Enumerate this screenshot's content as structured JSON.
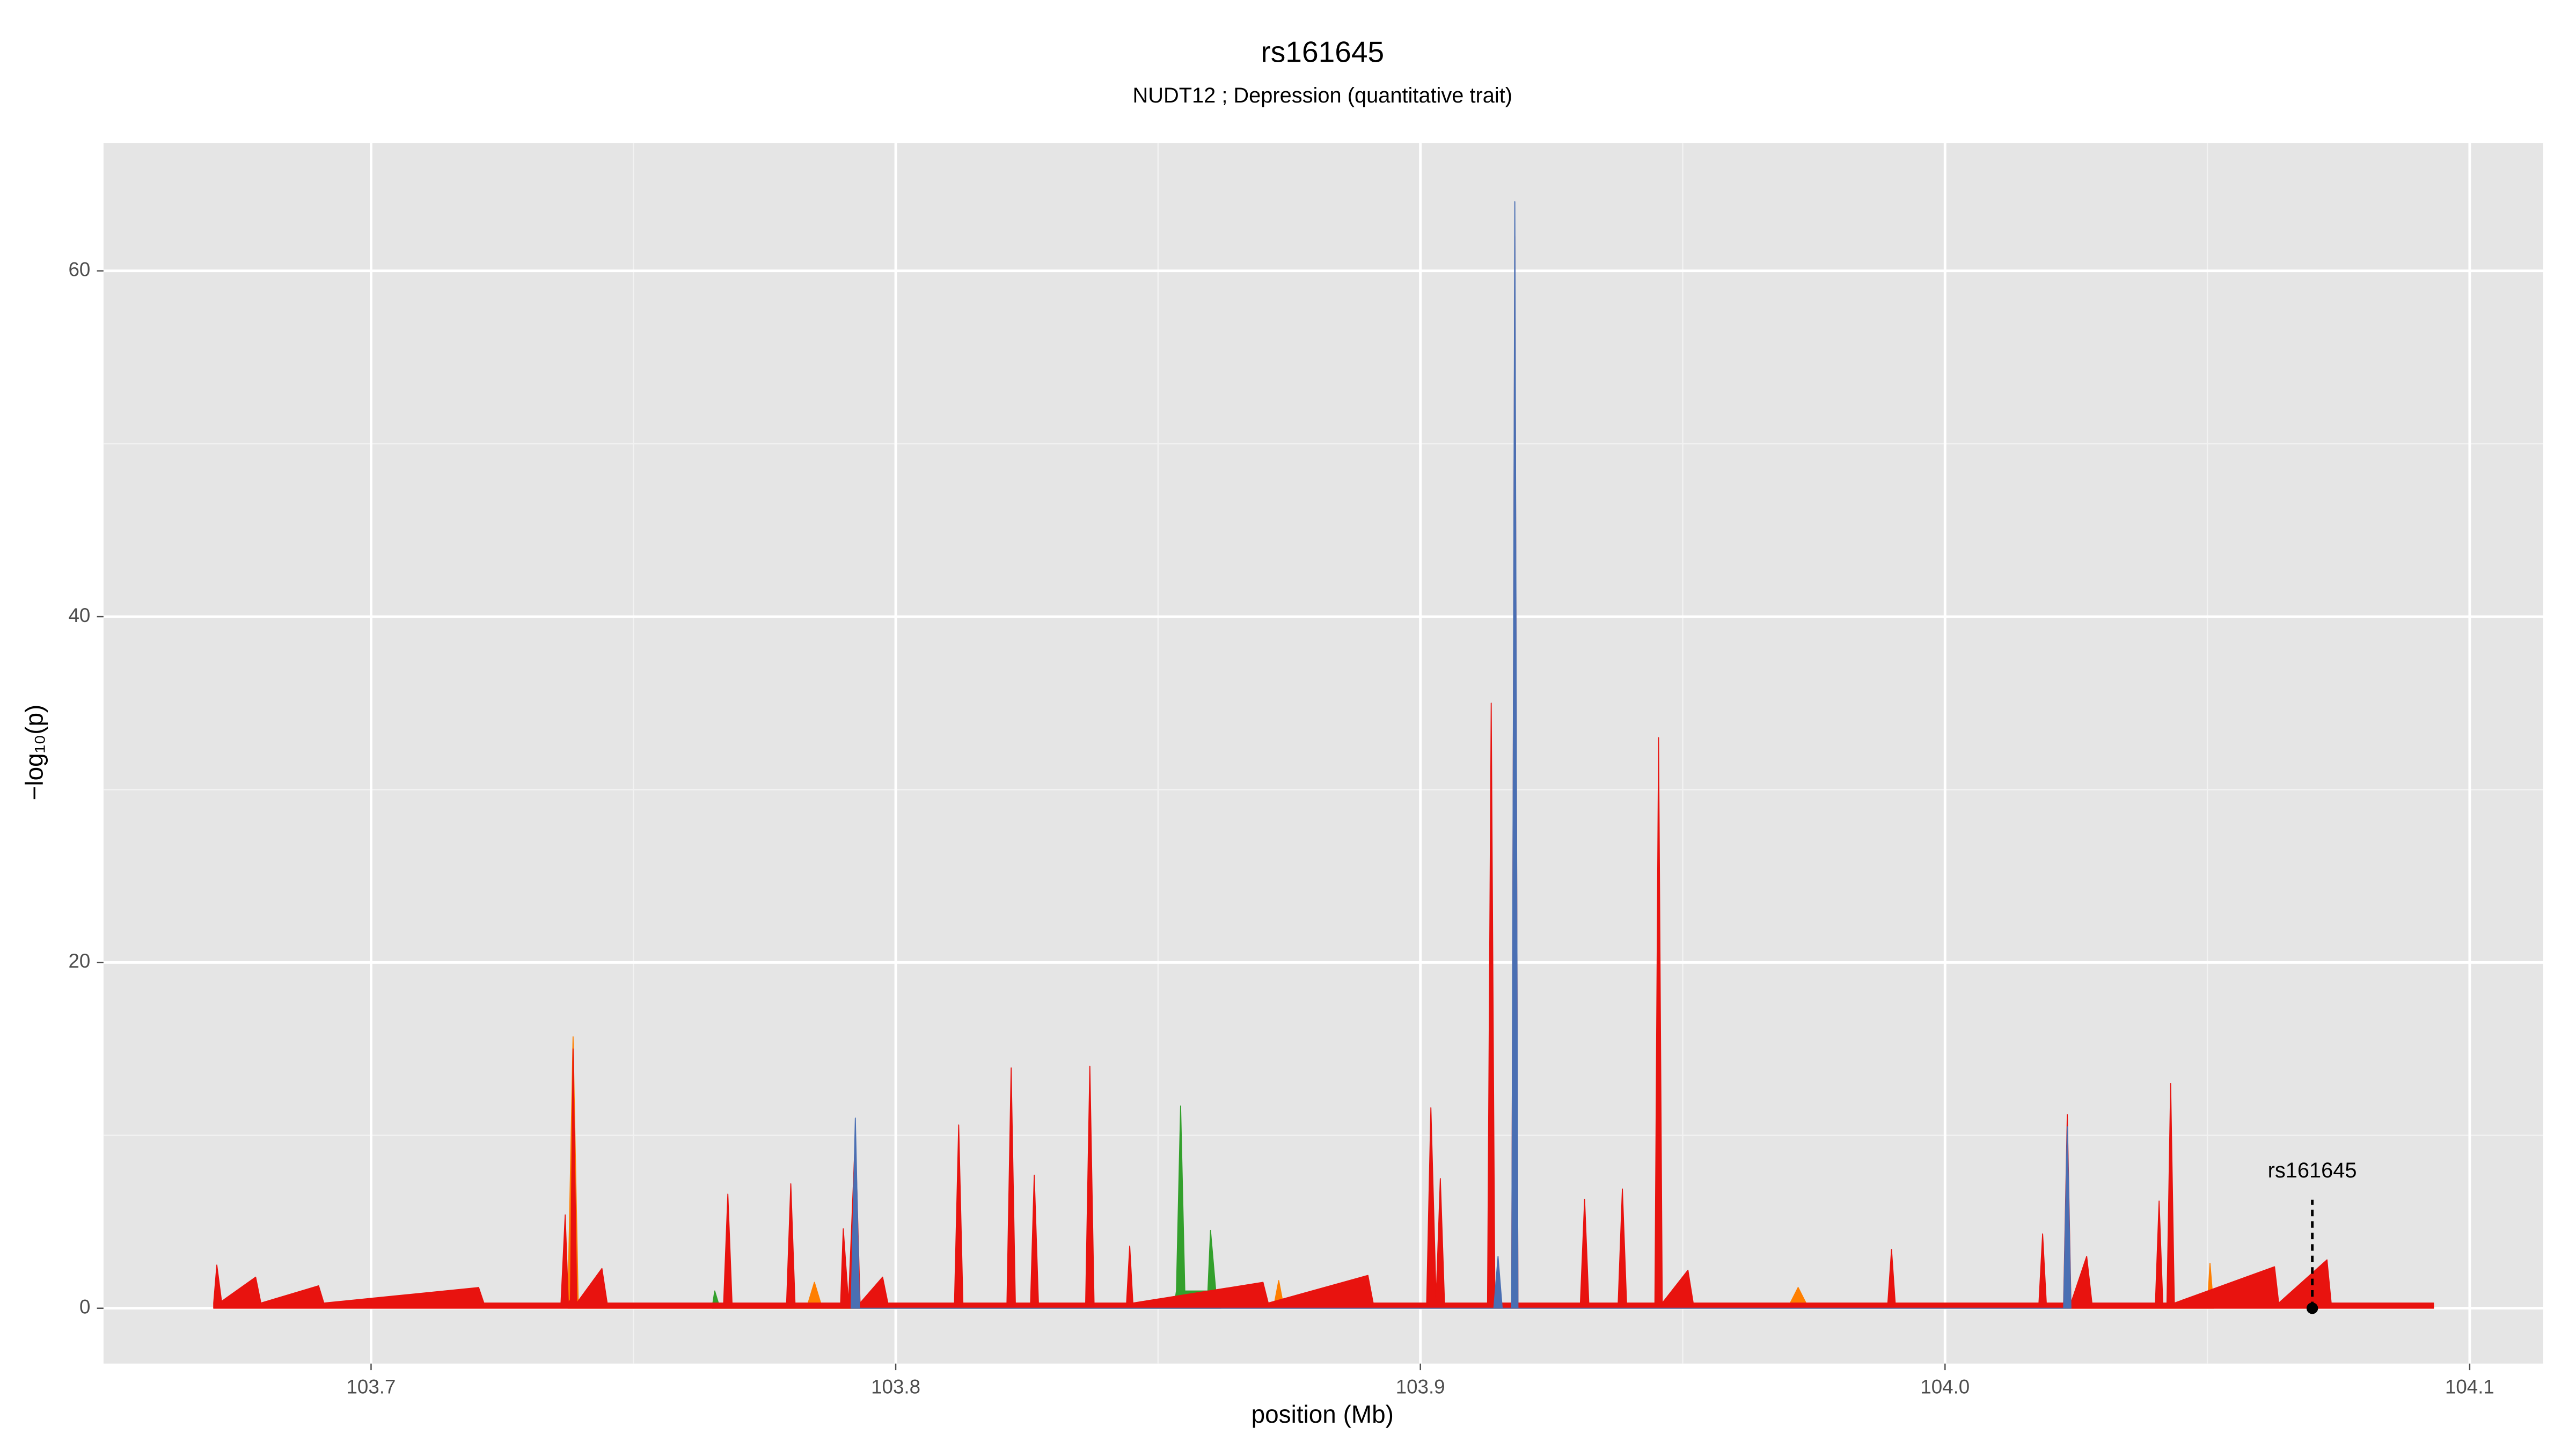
{
  "chart_data": {
    "type": "area",
    "title": "rs161645",
    "subtitle": "NUDT12 ; Depression (quantitative trait)",
    "xlabel": "position (Mb)",
    "ylabel": "−log₁₀(p)",
    "xlim": [
      103.649,
      104.114
    ],
    "ylim": [
      -3.2,
      67.4
    ],
    "xticks": [
      103.7,
      103.8,
      103.9,
      {
        "value": 104,
        "label": "104.0"
      },
      104.1
    ],
    "minor_xticks": [
      103.75,
      103.85,
      103.95,
      104.05
    ],
    "yticks": [
      0,
      20,
      40,
      60
    ],
    "minor_yticks": [
      10,
      30,
      50
    ],
    "grid": true,
    "panel_color": "#e5e5e5",
    "series": [
      {
        "color": "#ff7f00",
        "x": [
          103.7375,
          103.7385,
          103.7395,
          103.783,
          103.7845,
          103.786,
          103.872,
          103.873,
          103.874,
          103.97,
          103.972,
          103.974,
          104.05,
          104.0505,
          104.0512
        ],
        "values": [
          0,
          15.7,
          0,
          0,
          1.5,
          0,
          0,
          1.6,
          0,
          0,
          1.2,
          0,
          0,
          2.6,
          0
        ]
      },
      {
        "color": "#33a02c",
        "x": [
          103.765,
          103.7655,
          103.7665,
          103.853,
          103.8535,
          103.8543,
          103.8551,
          103.8595,
          103.86,
          103.861,
          103.862
        ],
        "values": [
          0,
          1,
          0,
          0,
          1,
          11.7,
          1,
          1,
          4.5,
          1,
          0
        ]
      },
      {
        "color": "#e8130f",
        "x": [
          103.67,
          103.6706,
          103.6715,
          103.678,
          103.679,
          103.69,
          103.691,
          103.7205,
          103.7215,
          103.7362,
          103.737,
          103.7376,
          103.738,
          103.7385,
          103.7392,
          103.744,
          103.745,
          103.7672,
          103.768,
          103.7688,
          103.7792,
          103.78,
          103.7808,
          103.7895,
          103.79,
          103.791,
          103.7923,
          103.7932,
          103.7975,
          103.7985,
          103.8112,
          103.812,
          103.8128,
          103.8212,
          103.822,
          103.8228,
          103.8257,
          103.8264,
          103.8272,
          103.8362,
          103.837,
          103.8378,
          103.844,
          103.8446,
          103.8452,
          103.87,
          103.871,
          103.89,
          103.891,
          103.9012,
          103.902,
          103.903,
          103.9038,
          103.9046,
          103.9128,
          103.9135,
          103.9142,
          103.9174,
          103.918,
          103.9186,
          103.9305,
          103.9313,
          103.9321,
          103.9377,
          103.9385,
          103.9393,
          103.9447,
          103.9454,
          103.9461,
          103.951,
          103.952,
          103.9891,
          103.9898,
          103.9905,
          104.0179,
          104.0186,
          104.0193,
          104.0226,
          104.0233,
          104.024,
          104.027,
          104.028,
          104.0401,
          104.0408,
          104.0415,
          104.0423,
          104.043,
          104.0437,
          104.0628,
          104.0636,
          104.0728,
          104.0736,
          104.0931
        ],
        "values": [
          0.3,
          2.5,
          0.4,
          1.8,
          0.3,
          1.3,
          0.3,
          1.2,
          0.3,
          0.3,
          5.4,
          0.3,
          0.5,
          15,
          0.3,
          2.3,
          0.3,
          0.3,
          6.6,
          0.3,
          0.3,
          7.2,
          0.3,
          0.3,
          4.6,
          0.3,
          10,
          0.3,
          1.8,
          0.3,
          0.3,
          10.6,
          0.3,
          0.3,
          13.9,
          0.3,
          0.3,
          7.7,
          0.3,
          0.3,
          14,
          0.3,
          0.3,
          3.6,
          0.3,
          1.5,
          0.3,
          1.9,
          0.3,
          0.3,
          11.6,
          0.5,
          7.5,
          0.3,
          0.3,
          35,
          0.3,
          0.3,
          62,
          0.3,
          0.3,
          6.3,
          0.3,
          0.3,
          6.9,
          0.3,
          0.3,
          33,
          0.3,
          2.2,
          0.3,
          0.3,
          3.4,
          0.3,
          0.3,
          4.3,
          0.3,
          0.3,
          11.2,
          0.3,
          3,
          0.3,
          0.3,
          6.2,
          0.3,
          0.3,
          13,
          0.3,
          2.4,
          0.3,
          2.8,
          0.3,
          0.3
        ]
      },
      {
        "color": "#4a6fb3",
        "x": [
          103.7915,
          103.7923,
          103.7931,
          103.914,
          103.9148,
          103.9156,
          103.9174,
          103.918,
          103.9186,
          104.0226,
          104.0233,
          104.024
        ],
        "values": [
          0,
          11,
          0,
          0,
          3,
          0,
          0,
          64,
          0,
          0,
          10.5,
          0
        ]
      }
    ],
    "annotations": [
      {
        "label": "rs161645",
        "x": 104.07,
        "y": 0
      }
    ]
  }
}
